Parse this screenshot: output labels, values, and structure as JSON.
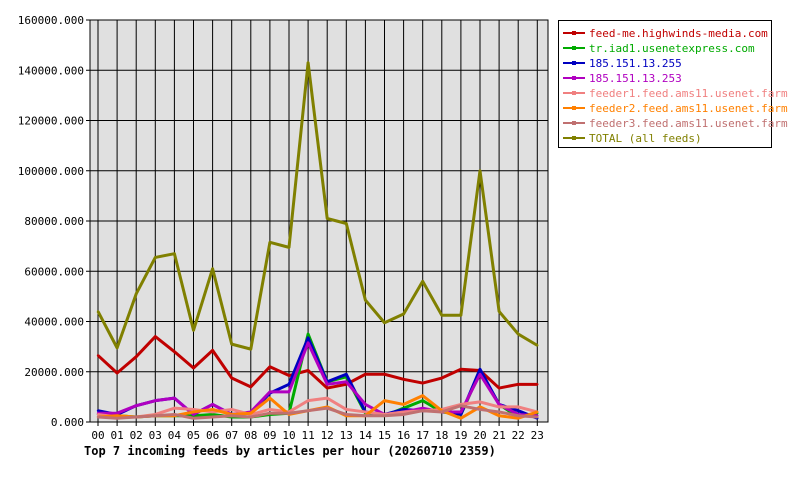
{
  "chart_data": {
    "type": "line",
    "caption": "Top 7 incoming feeds by articles per hour (20260710 2359)",
    "categories": [
      "00",
      "01",
      "02",
      "03",
      "04",
      "05",
      "06",
      "07",
      "08",
      "09",
      "10",
      "11",
      "12",
      "13",
      "14",
      "15",
      "16",
      "17",
      "18",
      "19",
      "20",
      "21",
      "22",
      "23"
    ],
    "y_ticks": [
      "0.000",
      "20000.000",
      "40000.000",
      "60000.000",
      "80000.000",
      "100000.000",
      "120000.000",
      "140000.000",
      "160000.000"
    ],
    "ylim": [
      0,
      160000
    ],
    "grid": true,
    "legend_position": "right",
    "series": [
      {
        "name": "feed-me.highwinds-media.com",
        "color": "#c00000",
        "values": [
          26500,
          19500,
          26000,
          34000,
          28000,
          21500,
          28500,
          17500,
          14000,
          22000,
          18500,
          20500,
          13500,
          15000,
          19000,
          19000,
          17000,
          15500,
          17500,
          21000,
          20500,
          13500,
          15000,
          15000
        ]
      },
      {
        "name": "tr.iad1.usenetexpress.com",
        "color": "#00aa00",
        "values": [
          3000,
          2500,
          2000,
          2500,
          2500,
          2500,
          3000,
          2000,
          2000,
          3000,
          3500,
          35000,
          16000,
          18000,
          3500,
          2500,
          5500,
          8500,
          4000,
          3000,
          20000,
          7000,
          2000,
          3500
        ]
      },
      {
        "name": "185.151.13.255",
        "color": "#0000c0",
        "values": [
          4500,
          3000,
          6500,
          8500,
          9500,
          3000,
          7000,
          3000,
          3500,
          11500,
          15000,
          33500,
          16000,
          19000,
          4000,
          3000,
          5000,
          4500,
          4500,
          3000,
          21000,
          7000,
          4500,
          1500
        ]
      },
      {
        "name": "185.151.13.253",
        "color": "#b000c0",
        "values": [
          3500,
          3500,
          6500,
          8500,
          9500,
          3000,
          7000,
          3000,
          4000,
          12000,
          12000,
          31500,
          15000,
          16000,
          7000,
          3000,
          4000,
          5500,
          4000,
          4000,
          19000,
          7000,
          3000,
          2500
        ]
      },
      {
        "name": "feeder1.feed.ams11.usenet.farm",
        "color": "#f08080",
        "values": [
          3000,
          2000,
          2000,
          3000,
          5500,
          5000,
          4000,
          5000,
          3000,
          5000,
          4000,
          8500,
          9500,
          5000,
          4000,
          3000,
          4000,
          4500,
          5000,
          7000,
          8000,
          6000,
          6000,
          4000
        ]
      },
      {
        "name": "feeder2.feed.ams11.usenet.farm",
        "color": "#ff8000",
        "values": [
          2000,
          2500,
          2000,
          2500,
          2500,
          4000,
          5000,
          3000,
          3500,
          9500,
          3000,
          4500,
          6000,
          2500,
          2500,
          8500,
          7000,
          10500,
          4500,
          1500,
          6000,
          2500,
          1500,
          4000
        ]
      },
      {
        "name": "feeder3.feed.ams11.usenet.farm",
        "color": "#c07070",
        "values": [
          2000,
          1500,
          2000,
          2500,
          3000,
          1500,
          2000,
          2500,
          2000,
          3500,
          3500,
          4500,
          5500,
          3000,
          2500,
          2500,
          3000,
          4500,
          4000,
          6500,
          5000,
          4000,
          2500,
          2000
        ]
      },
      {
        "name": "TOTAL (all feeds)",
        "color": "#808000",
        "values": [
          44000,
          29500,
          51000,
          65500,
          67000,
          36500,
          61000,
          31000,
          29000,
          71500,
          69500,
          143000,
          81000,
          79000,
          48500,
          39500,
          43000,
          56000,
          42500,
          42500,
          100000,
          44000,
          35000,
          30500
        ]
      }
    ]
  }
}
